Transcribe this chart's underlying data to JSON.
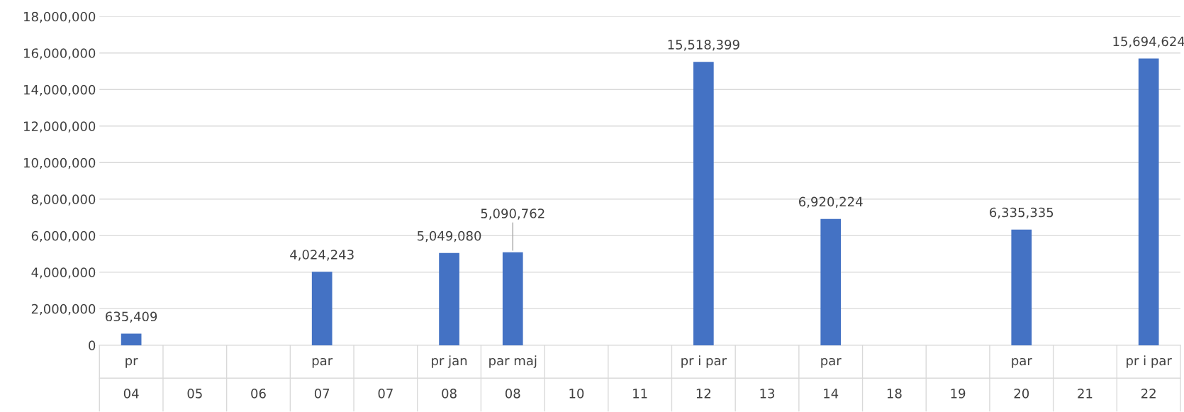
{
  "chart_data": {
    "type": "bar",
    "categories": [
      "pr\n04",
      "\n05",
      "\n06",
      "par\n07",
      "\n07",
      "pr jan\n08",
      "par maj\n08",
      "\n10",
      "\n11",
      "pr i par\n12",
      "\n13",
      "par\n14",
      "\n18",
      "\n19",
      "par\n20",
      "\n21",
      "pr i par\n22"
    ],
    "values": [
      635409,
      null,
      null,
      4024243,
      null,
      5049080,
      5090762,
      null,
      null,
      15518399,
      null,
      6920224,
      null,
      null,
      6335335,
      null,
      15694624
    ],
    "color": "#4472c4",
    "value_labels": [
      "635,409",
      null,
      null,
      "4,024,243",
      null,
      "5,049,080",
      "5,090,762",
      null,
      null,
      "15,518,399",
      null,
      "6,920,224",
      null,
      null,
      "6,335,335",
      null,
      "15,694,624"
    ],
    "ylim": [
      0,
      18000000
    ],
    "yticks": [
      {
        "value": 0,
        "label": "0"
      },
      {
        "value": 2000000,
        "label": "2,000,000"
      },
      {
        "value": 4000000,
        "label": "4,000,000"
      },
      {
        "value": 6000000,
        "label": "6,000,000"
      },
      {
        "value": 8000000,
        "label": "8,000,000"
      },
      {
        "value": 10000000,
        "label": "10,000,000"
      },
      {
        "value": 12000000,
        "label": "12,000,000"
      },
      {
        "value": 14000000,
        "label": "14,000,000"
      },
      {
        "value": 16000000,
        "label": "16,000,000"
      },
      {
        "value": 18000000,
        "label": "18,000,000"
      }
    ],
    "grid": "y"
  }
}
